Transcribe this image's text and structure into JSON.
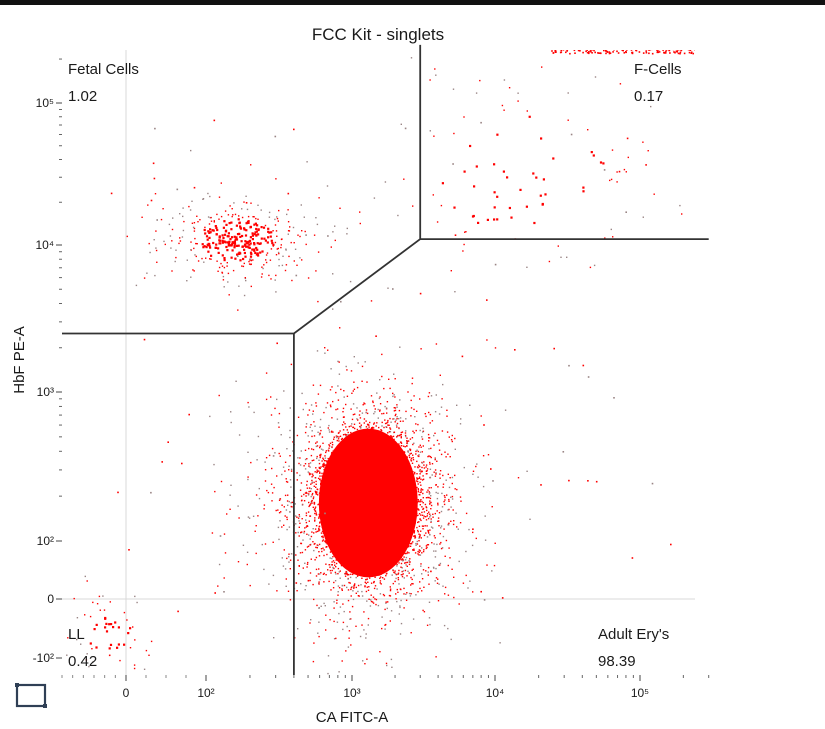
{
  "chart_data": {
    "type": "scatter",
    "title": "FCC Kit - singlets",
    "xlabel": "CA FITC-A",
    "ylabel": "HbF PE-A",
    "x_scale": "biexponential",
    "y_scale": "biexponential",
    "xlim": [
      -150,
      300000
    ],
    "ylim": [
      -150,
      250000
    ],
    "x_ticks": [
      {
        "value": 0,
        "label": "0"
      },
      {
        "value": 100,
        "label": "10²"
      },
      {
        "value": 1000,
        "label": "10³"
      },
      {
        "value": 10000,
        "label": "10⁴"
      },
      {
        "value": 100000,
        "label": "10⁵"
      }
    ],
    "y_ticks": [
      {
        "value": -100,
        "label": "-10²"
      },
      {
        "value": 0,
        "label": "0"
      },
      {
        "value": 100,
        "label": "10²"
      },
      {
        "value": 1000,
        "label": "10³"
      },
      {
        "value": 10000,
        "label": "10⁴"
      },
      {
        "value": 100000,
        "label": "10⁵"
      }
    ],
    "zero_gridlines": true,
    "point_colors": {
      "dense": "#ff0000",
      "sparse": "#9a8585"
    },
    "gate_color": "#333333",
    "gates": [
      {
        "name": "Fetal Cells",
        "percent": "1.02",
        "label_position": "top-left"
      },
      {
        "name": "F-Cells",
        "percent": "0.17",
        "label_position": "top-right"
      },
      {
        "name": "LL",
        "percent": "0.42",
        "label_position": "bottom-left"
      },
      {
        "name": "Adult Ery's",
        "percent": "98.39",
        "label_position": "bottom-right"
      }
    ],
    "gate_vertices": {
      "fetal_cells_lower_boundary": [
        [
          -150,
          2500
        ],
        [
          400,
          2500
        ],
        [
          3000,
          11000
        ],
        [
          3000,
          250000
        ]
      ],
      "f_cells_lower_boundary": [
        [
          3000,
          11000
        ],
        [
          300000,
          11000
        ]
      ],
      "adult_ery_left_boundary": [
        [
          400,
          -150
        ],
        [
          400,
          2500
        ]
      ]
    },
    "populations": [
      {
        "name": "Adult Ery's",
        "center_x": 1300,
        "center_y": 180,
        "spread_x_log": 0.28,
        "spread_y_log": 0.55,
        "event_fraction": 0.9839
      },
      {
        "name": "Fetal Cells",
        "center_x": 160,
        "center_y": 11000,
        "spread_x_log": 0.4,
        "spread_y_log": 0.16,
        "event_fraction": 0.0102
      },
      {
        "name": "F-Cells",
        "center_x": 15000,
        "center_y": 30000,
        "spread_x_log": 0.45,
        "spread_y_log": 0.35,
        "event_fraction": 0.0017
      },
      {
        "name": "LL",
        "center_x": -40,
        "center_y": -60,
        "spread_x_log": 0.3,
        "spread_y_log": 0.3,
        "event_fraction": 0.0042
      }
    ]
  }
}
